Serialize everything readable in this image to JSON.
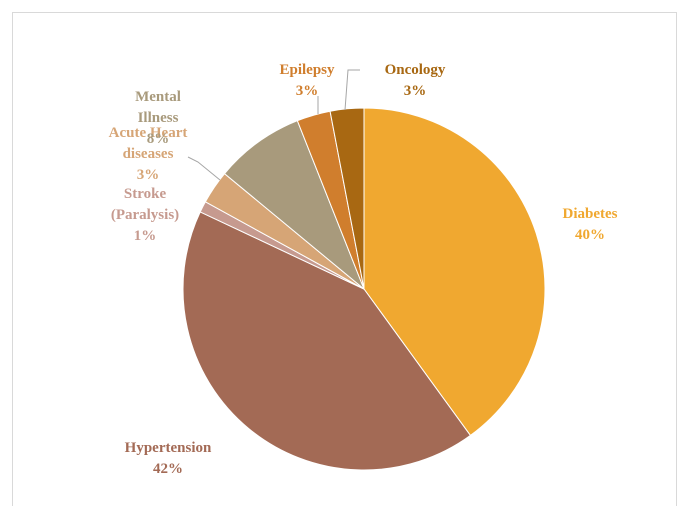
{
  "chart_data": {
    "type": "pie",
    "title": "",
    "slices": [
      {
        "label": "Diabetes",
        "value": 40,
        "value_label": "40%",
        "color": "#F0A830"
      },
      {
        "label": "Hypertension",
        "value": 42,
        "value_label": "42%",
        "color": "#A36A55"
      },
      {
        "label": "Stroke\n(Paralysis)",
        "value": 1,
        "value_label": "1%",
        "color": "#C69A8F"
      },
      {
        "label": "Acute Heart\ndiseases",
        "value": 3,
        "value_label": "3%",
        "color": "#D6A576"
      },
      {
        "label": "Mental\nIllness",
        "value": 8,
        "value_label": "8%",
        "color": "#A89A7C"
      },
      {
        "label": "Epilepsy",
        "value": 3,
        "value_label": "3%",
        "color": "#D07E2D"
      },
      {
        "label": "Oncology",
        "value": 3,
        "value_label": "3%",
        "color": "#A86812"
      }
    ],
    "legend": "none",
    "start_angle": "12 o'clock, clockwise"
  }
}
